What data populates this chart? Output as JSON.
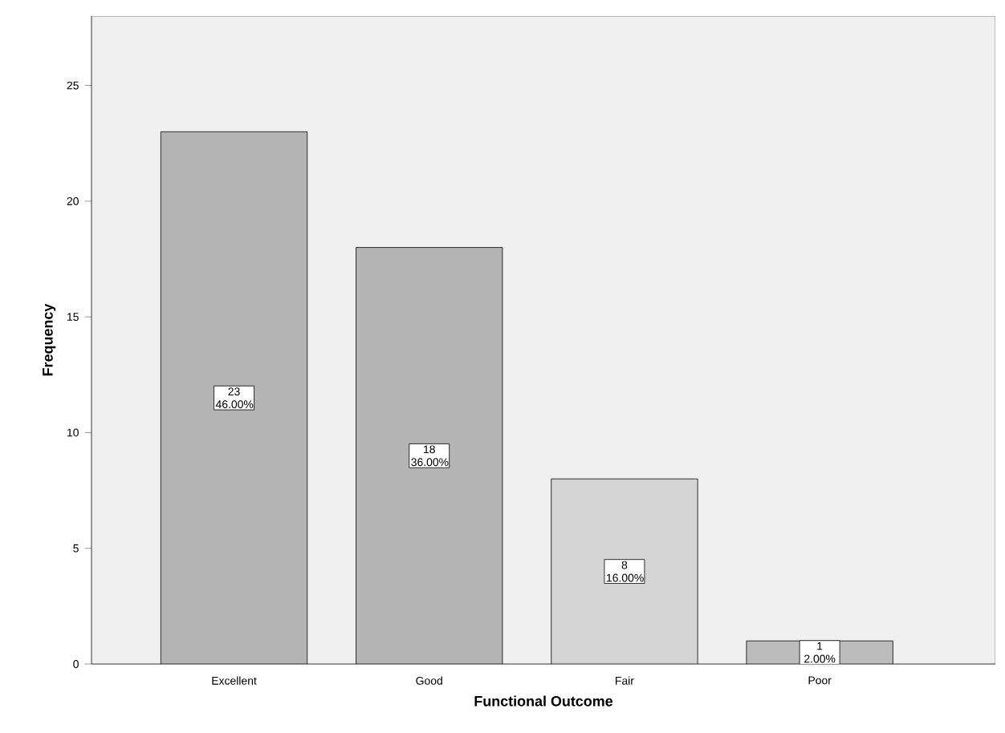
{
  "chart_data": {
    "type": "bar",
    "xlabel": "Functional  Outcome",
    "ylabel": "Frequency",
    "categories": [
      "Excellent",
      "Good",
      "Fair",
      "Poor"
    ],
    "values": [
      23,
      18,
      8,
      1
    ],
    "colors": [
      "#b4b4b4",
      "#b4b4b4",
      "#d4d4d4",
      "#bcbcbc"
    ],
    "value_labels": [
      "23 46.00%",
      "18 36.00%",
      "8 16.00%",
      "1 2.00%"
    ],
    "ylim": [
      0,
      28
    ],
    "yticks": [
      0,
      5,
      10,
      15,
      20,
      25
    ],
    "grid": false
  }
}
